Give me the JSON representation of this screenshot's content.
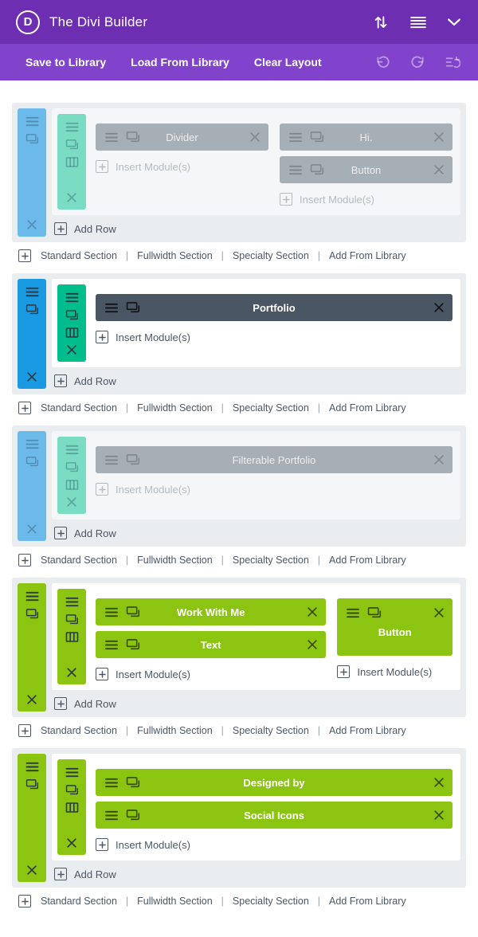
{
  "header": {
    "logo_letter": "D",
    "title": "The Divi Builder"
  },
  "toolbar": {
    "save": "Save to Library",
    "load": "Load From Library",
    "clear": "Clear Layout"
  },
  "builder": {
    "insert_module_label": "Insert Module(s)",
    "add_row_label": "Add Row",
    "footer_separator": "|",
    "footer_links": [
      "Standard Section",
      "Fullwidth Section",
      "Specialty Section",
      "Add From Library"
    ],
    "sections": [
      {
        "palette": "blue",
        "state": "faded",
        "columns": [
          {
            "flex": 1,
            "modules": [
              {
                "label": "Divider"
              }
            ]
          },
          {
            "flex": 1,
            "modules": [
              {
                "label": "Hi."
              },
              {
                "label": "Button"
              }
            ]
          }
        ]
      },
      {
        "palette": "blue",
        "state": "active",
        "columns": [
          {
            "flex": 1,
            "modules": [
              {
                "label": "Portfolio"
              }
            ]
          }
        ]
      },
      {
        "palette": "blue",
        "state": "faded",
        "columns": [
          {
            "flex": 1,
            "modules": [
              {
                "label": "Filterable Portfolio"
              }
            ]
          }
        ]
      },
      {
        "palette": "green",
        "state": "active",
        "columns": [
          {
            "flex": 2,
            "modules": [
              {
                "label": "Work With Me"
              },
              {
                "label": "Text"
              }
            ]
          },
          {
            "flex": 1,
            "modules": [
              {
                "label": "Button",
                "tall": true
              }
            ]
          }
        ]
      },
      {
        "palette": "green",
        "state": "active",
        "columns": [
          {
            "flex": 1,
            "modules": [
              {
                "label": "Designed by"
              },
              {
                "label": "Social Icons"
              }
            ]
          }
        ]
      }
    ]
  },
  "colors": {
    "header_bg": "#6e2eb2",
    "toolbar_bg": "#8142cc",
    "blue_active": "#1899e1",
    "blue_faded": "#6cbae9",
    "teal_active": "#00bd8c",
    "teal_faded": "#7adcc3",
    "green": "#8cc412",
    "module_dark": "#4b5664",
    "module_faded": "#a6aeb6",
    "section_bg": "#e9edf0",
    "row_bg": "#ffffff",
    "row_bg_faded": "#f4f6f7",
    "text_slate": "#4c5866"
  }
}
